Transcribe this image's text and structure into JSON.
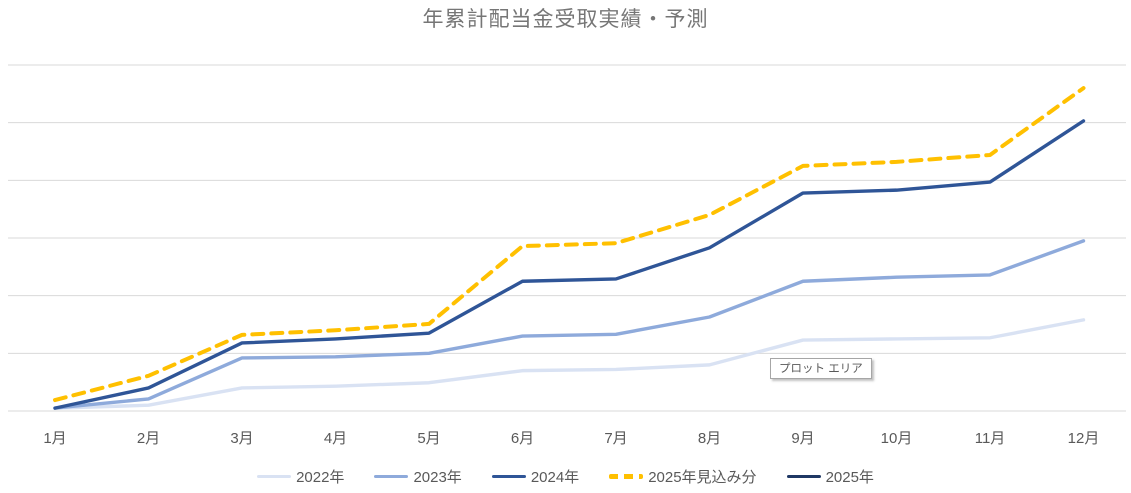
{
  "tooltip": {
    "text": "プロット エリア"
  },
  "colors": {
    "gridline": "#d9d9d9",
    "axis_text": "#595959",
    "title_text": "#767676",
    "series_2022": "#d9e2f3",
    "series_2023": "#8eaadb",
    "series_2024": "#2f5597",
    "series_2025_forecast": "#ffc000",
    "series_2025": "#1f3864"
  },
  "chart_data": {
    "type": "line",
    "title": "年累計配当金受取実績・予測",
    "x": [
      "1月",
      "2月",
      "3月",
      "4月",
      "5月",
      "6月",
      "7月",
      "8月",
      "9月",
      "10月",
      "11月",
      "12月"
    ],
    "series": [
      {
        "name": "2022年",
        "key": "2022",
        "color": "#d9e2f3",
        "style": "solid",
        "values": [
          0.05,
          0.1,
          0.4,
          0.43,
          0.49,
          0.7,
          0.72,
          0.8,
          1.23,
          1.25,
          1.27,
          1.58
        ]
      },
      {
        "name": "2023年",
        "key": "2023",
        "color": "#8eaadb",
        "style": "solid",
        "values": [
          0.05,
          0.21,
          0.92,
          0.94,
          1.0,
          1.3,
          1.33,
          1.63,
          2.25,
          2.32,
          2.36,
          2.95
        ]
      },
      {
        "name": "2024年",
        "key": "2024",
        "color": "#2f5597",
        "style": "solid",
        "values": [
          0.05,
          0.4,
          1.18,
          1.25,
          1.35,
          2.25,
          2.29,
          2.83,
          3.78,
          3.83,
          3.97,
          5.03
        ]
      },
      {
        "name": "2025年見込み分",
        "key": "2025-forecast",
        "color": "#ffc000",
        "style": "dashed",
        "values": [
          0.19,
          0.61,
          1.32,
          1.4,
          1.51,
          2.86,
          2.91,
          3.4,
          4.25,
          4.32,
          4.44,
          5.6
        ]
      },
      {
        "name": "2025年",
        "key": "2025",
        "color": "#1f3864",
        "style": "solid",
        "values": [
          0.05,
          null,
          null,
          null,
          null,
          null,
          null,
          null,
          null,
          null,
          null,
          null
        ]
      }
    ],
    "ylim": [
      0,
      6.2
    ],
    "y_unit": "gridline-interval",
    "y_axis_labels_visible": false,
    "grid": true,
    "legend_position": "bottom"
  }
}
